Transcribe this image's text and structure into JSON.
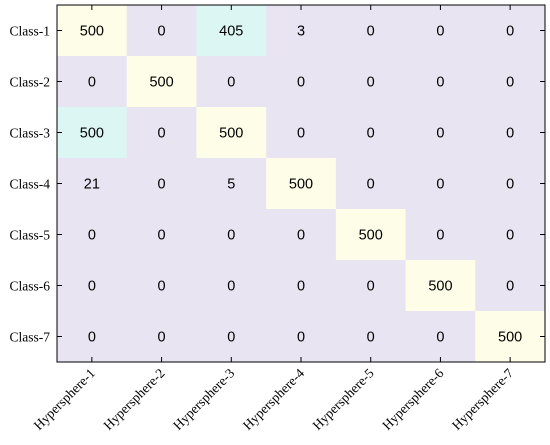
{
  "chart_data": {
    "type": "heatmap",
    "title": "",
    "xlabel": "",
    "ylabel": "",
    "rows": [
      "Class-1",
      "Class-2",
      "Class-3",
      "Class-4",
      "Class-5",
      "Class-6",
      "Class-7"
    ],
    "columns": [
      "Hypersphere-1",
      "Hypersphere-2",
      "Hypersphere-3",
      "Hypersphere-4",
      "Hypersphere-5",
      "Hypersphere-6",
      "Hypersphere-7"
    ],
    "values": [
      [
        500,
        0,
        405,
        3,
        0,
        0,
        0
      ],
      [
        0,
        500,
        0,
        0,
        0,
        0,
        0
      ],
      [
        500,
        0,
        500,
        0,
        0,
        0,
        0
      ],
      [
        21,
        0,
        5,
        500,
        0,
        0,
        0
      ],
      [
        0,
        0,
        0,
        0,
        500,
        0,
        0
      ],
      [
        0,
        0,
        0,
        0,
        0,
        500,
        0
      ],
      [
        0,
        0,
        0,
        0,
        0,
        0,
        500
      ]
    ],
    "colors": {
      "background": "#e8e4f2",
      "row_class_500": "#dcf6f4",
      "diagonal_500": "#fefde8",
      "axis": "#000000"
    }
  }
}
